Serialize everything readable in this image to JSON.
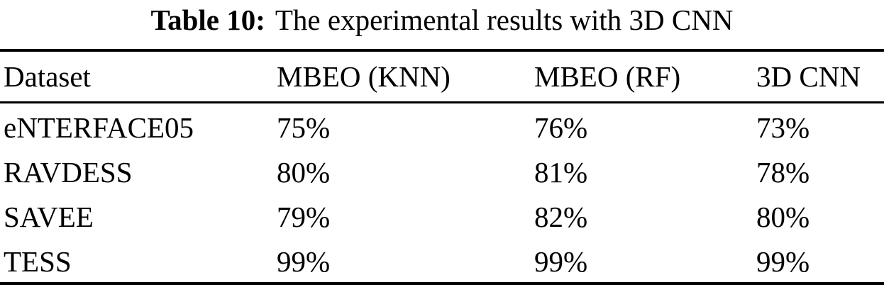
{
  "caption": {
    "label": "Table 10:",
    "text": "The experimental results with 3D CNN"
  },
  "table": {
    "columns": [
      "Dataset",
      "MBEO (KNN)",
      "MBEO (RF)",
      "3D CNN"
    ],
    "rows": [
      [
        "eNTERFACE05",
        "75%",
        "76%",
        "73%"
      ],
      [
        "RAVDESS",
        "80%",
        "81%",
        "78%"
      ],
      [
        "SAVEE",
        "79%",
        "82%",
        "80%"
      ],
      [
        "TESS",
        "99%",
        "99%",
        "99%"
      ]
    ]
  },
  "colors": {
    "text": "#000000",
    "background": "#ffffff",
    "rule": "#000000"
  }
}
